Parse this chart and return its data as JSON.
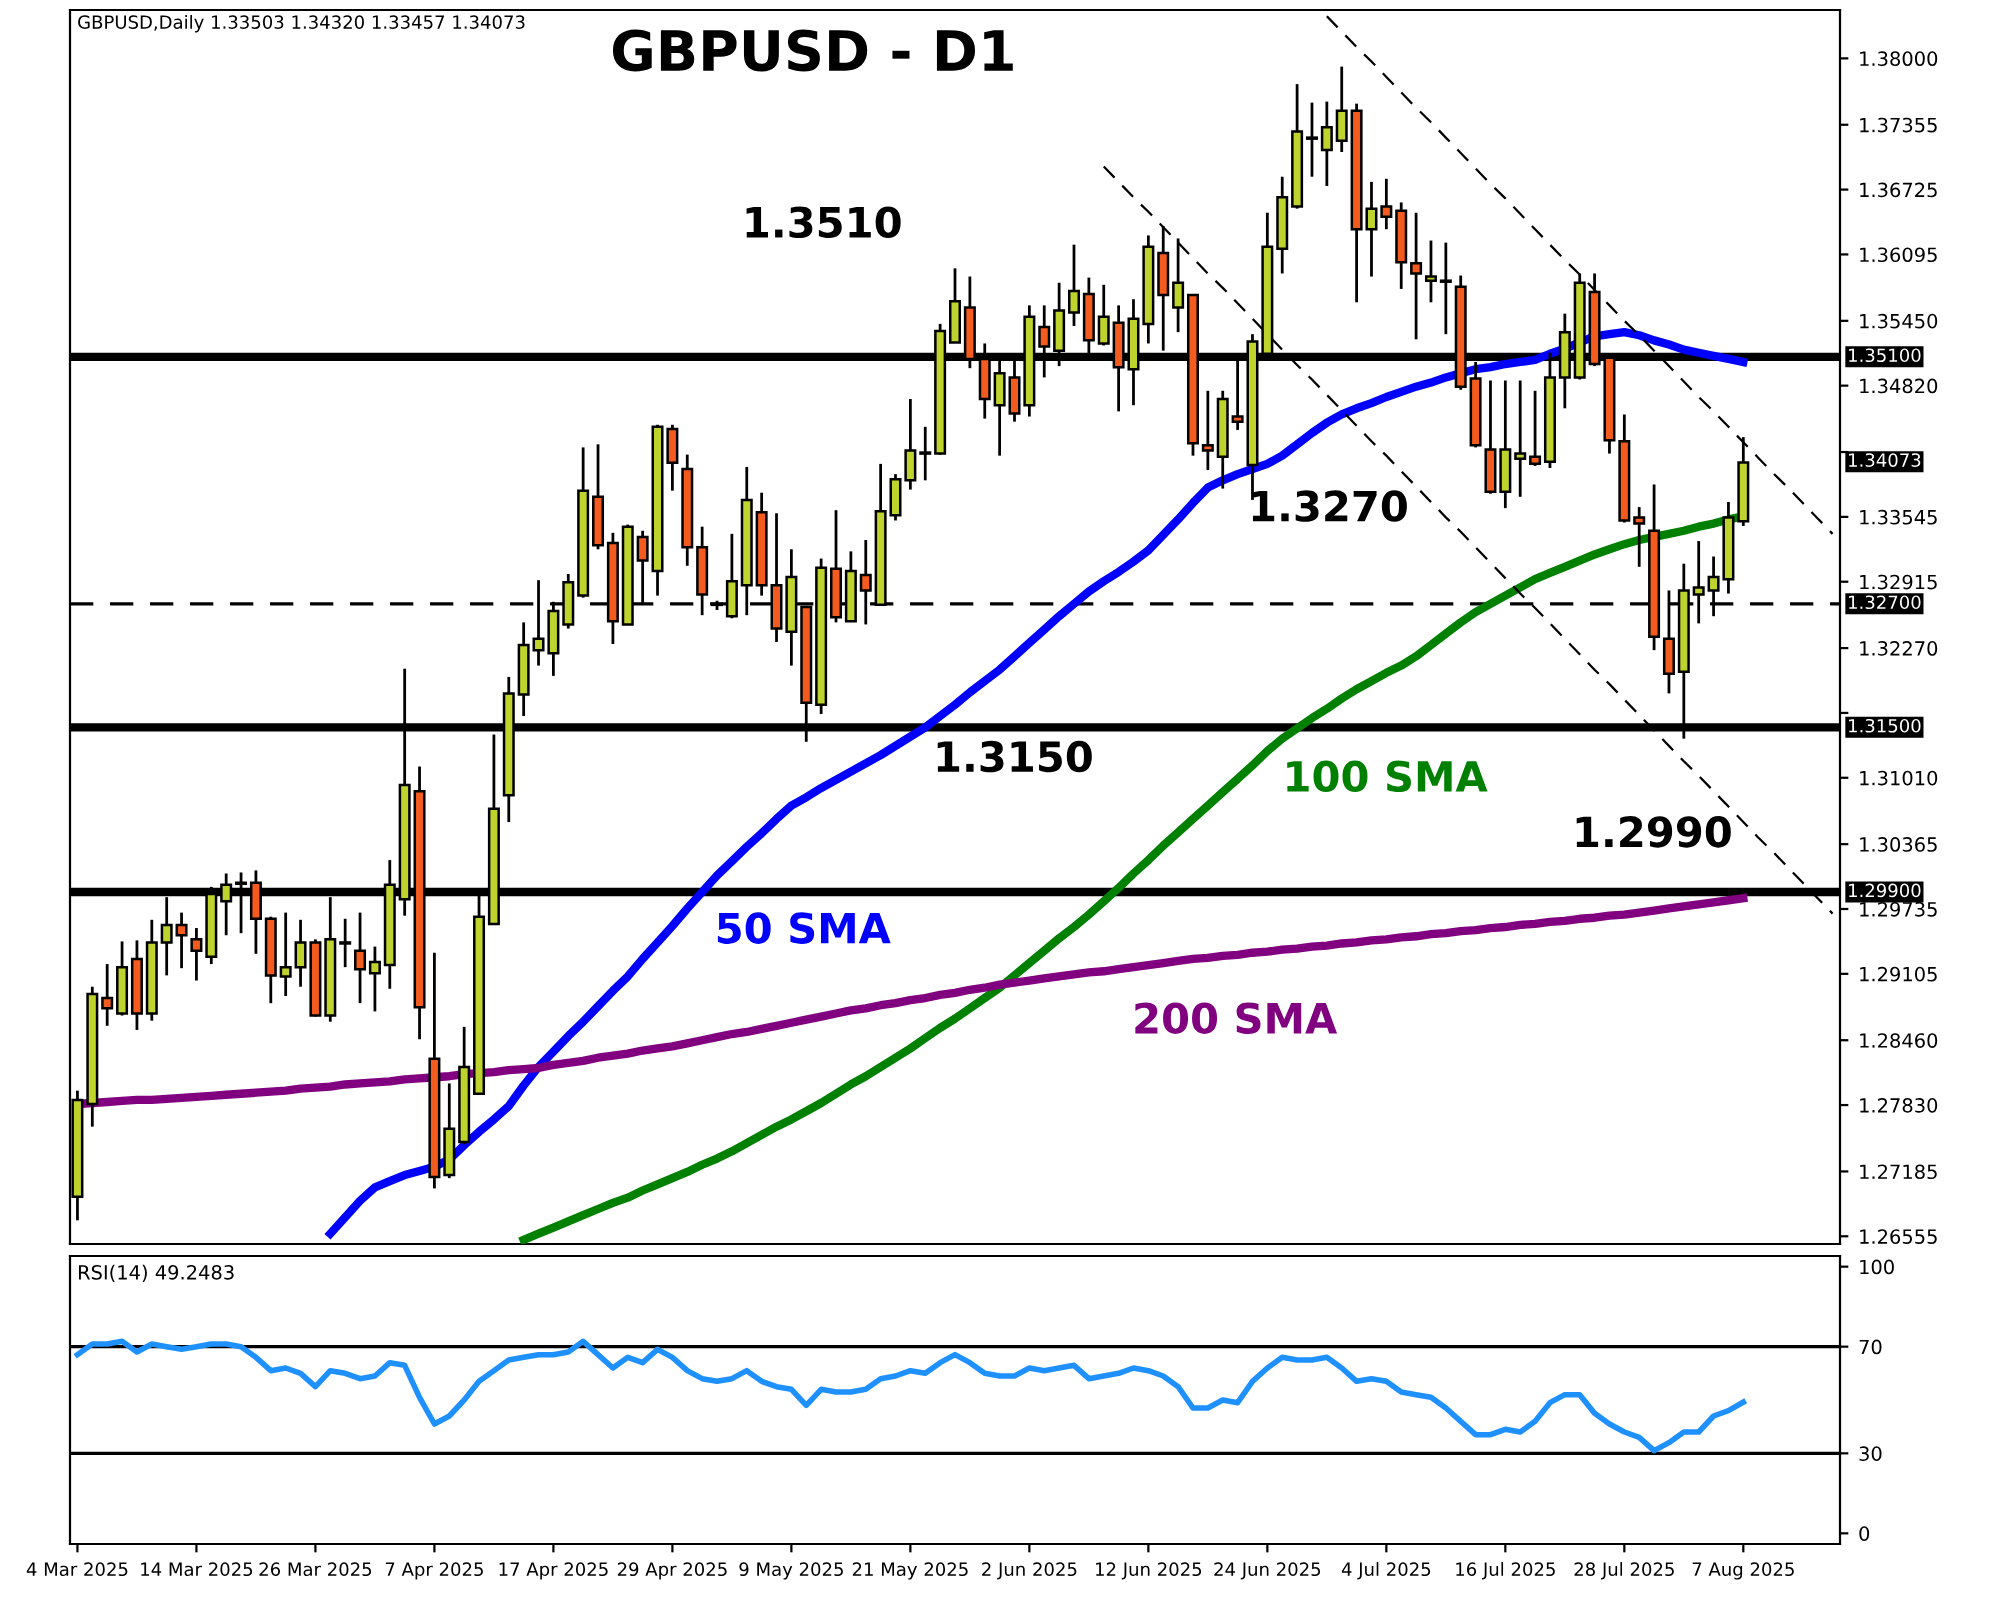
{
  "chart_data": [
    {
      "type": "candlestick",
      "title": "GBPUSD - D1",
      "subtitle": "GBPUSD,Daily 1.33503 1.34320 1.33457 1.34073",
      "categories": [
        null,
        null,
        null,
        null,
        null,
        null,
        null,
        null,
        null,
        null,
        null,
        null,
        null,
        null,
        null,
        null,
        null,
        null,
        null,
        null,
        null,
        null,
        null,
        null,
        null,
        null,
        null,
        null,
        null,
        null,
        null,
        null,
        null,
        null,
        null,
        null,
        null,
        null,
        null,
        null,
        null,
        null,
        null,
        null,
        null,
        null,
        null,
        null,
        null,
        null,
        null,
        null,
        null,
        null,
        null,
        null,
        null,
        null,
        null,
        null,
        null,
        null,
        null,
        null,
        null,
        null,
        null,
        null,
        null,
        null,
        null,
        null,
        null,
        null,
        null,
        null,
        null,
        null,
        null,
        null,
        null,
        null,
        null,
        null,
        null,
        null,
        null,
        null,
        null,
        null,
        null,
        null,
        null,
        null,
        null,
        null,
        null,
        null,
        null,
        null,
        null,
        null,
        null,
        null,
        null,
        null,
        null,
        null,
        null,
        null,
        null,
        null,
        null,
        null,
        null,
        null,
        null,
        null,
        null
      ],
      "ohlc": [
        [
          1.2694,
          1.2797,
          1.2671,
          1.2788
        ],
        [
          1.2784,
          1.2898,
          1.2762,
          1.2891
        ],
        [
          1.2887,
          1.292,
          1.286,
          1.2877
        ],
        [
          1.2872,
          1.2942,
          1.287,
          1.2917
        ],
        [
          1.2925,
          1.2943,
          1.2856,
          1.2872
        ],
        [
          1.2872,
          1.2963,
          1.2865,
          1.2941
        ],
        [
          1.2941,
          1.2985,
          1.2909,
          1.2958
        ],
        [
          1.2958,
          1.297,
          1.2916,
          1.2948
        ],
        [
          1.2944,
          1.2955,
          1.2904,
          1.2933
        ],
        [
          1.2927,
          1.2995,
          1.292,
          1.2988
        ],
        [
          1.2981,
          1.3008,
          1.2948,
          1.2997
        ],
        [
          1.2998,
          1.3009,
          1.295,
          1.2999
        ],
        [
          1.2999,
          1.3011,
          1.293,
          1.2964
        ],
        [
          1.2964,
          1.2966,
          1.2882,
          1.2909
        ],
        [
          1.2908,
          1.297,
          1.2889,
          1.2917
        ],
        [
          1.2917,
          1.2963,
          1.2898,
          1.2941
        ],
        [
          1.2941,
          1.2944,
          1.2869,
          1.287
        ],
        [
          1.287,
          1.2985,
          1.2864,
          1.2944
        ],
        [
          1.2941,
          1.2964,
          1.2917,
          1.294
        ],
        [
          1.2933,
          1.297,
          1.2882,
          1.2915
        ],
        [
          1.2911,
          1.2937,
          1.2874,
          1.2922
        ],
        [
          1.2919,
          1.3021,
          1.2896,
          1.2997
        ],
        [
          1.2983,
          1.3207,
          1.2967,
          1.3094
        ],
        [
          1.3088,
          1.3112,
          1.2847,
          1.2878
        ],
        [
          1.2828,
          1.2931,
          1.2702,
          1.2713
        ],
        [
          1.2715,
          1.2804,
          1.2712,
          1.276
        ],
        [
          1.2747,
          1.2859,
          1.2745,
          1.282
        ],
        [
          1.2794,
          1.2993,
          1.2794,
          1.2966
        ],
        [
          1.2959,
          1.3143,
          1.2959,
          1.3071
        ],
        [
          1.3084,
          1.3199,
          1.3058,
          1.3183
        ],
        [
          1.3182,
          1.3252,
          1.3161,
          1.323
        ],
        [
          1.3225,
          1.3293,
          1.321,
          1.3236
        ],
        [
          1.3222,
          1.3272,
          1.32,
          1.3263
        ],
        [
          1.325,
          1.3299,
          1.3246,
          1.3291
        ],
        [
          1.3278,
          1.3422,
          1.3276,
          1.338
        ],
        [
          1.3374,
          1.3425,
          1.3323,
          1.3327
        ],
        [
          1.3329,
          1.3339,
          1.3231,
          1.3253
        ],
        [
          1.325,
          1.3347,
          1.325,
          1.3345
        ],
        [
          1.3335,
          1.3341,
          1.327,
          1.3312
        ],
        [
          1.3302,
          1.3444,
          1.3278,
          1.3442
        ],
        [
          1.344,
          1.3444,
          1.338,
          1.3407
        ],
        [
          1.3401,
          1.3415,
          1.3307,
          1.3325
        ],
        [
          1.3325,
          1.3345,
          1.3259,
          1.3279
        ],
        [
          1.3269,
          1.3273,
          1.3264,
          1.327
        ],
        [
          1.3258,
          1.3338,
          1.3256,
          1.3292
        ],
        [
          1.3288,
          1.3403,
          1.3259,
          1.3371
        ],
        [
          1.3359,
          1.3378,
          1.3278,
          1.3288
        ],
        [
          1.3288,
          1.3358,
          1.3233,
          1.3246
        ],
        [
          1.3243,
          1.3323,
          1.321,
          1.3296
        ],
        [
          1.3267,
          1.3268,
          1.3136,
          1.3174
        ],
        [
          1.3172,
          1.3314,
          1.3163,
          1.3305
        ],
        [
          1.3304,
          1.3361,
          1.3252,
          1.3257
        ],
        [
          1.3253,
          1.3321,
          1.3253,
          1.3302
        ],
        [
          1.3298,
          1.3332,
          1.325,
          1.3283
        ],
        [
          1.3269,
          1.3406,
          1.3269,
          1.336
        ],
        [
          1.3356,
          1.3396,
          1.3351,
          1.3391
        ],
        [
          1.339,
          1.3469,
          1.3381,
          1.3419
        ],
        [
          1.3416,
          1.3442,
          1.339,
          1.3417
        ],
        [
          1.3416,
          1.3542,
          1.3415,
          1.3535
        ],
        [
          1.3524,
          1.3596,
          1.3524,
          1.3564
        ],
        [
          1.3558,
          1.3588,
          1.3499,
          1.3508
        ],
        [
          1.3508,
          1.3523,
          1.345,
          1.3469
        ],
        [
          1.3463,
          1.3509,
          1.3414,
          1.3494
        ],
        [
          1.349,
          1.3509,
          1.3447,
          1.3455
        ],
        [
          1.3463,
          1.356,
          1.3452,
          1.3549
        ],
        [
          1.3539,
          1.356,
          1.349,
          1.352
        ],
        [
          1.3516,
          1.3582,
          1.3501,
          1.3555
        ],
        [
          1.3553,
          1.3619,
          1.354,
          1.3574
        ],
        [
          1.3571,
          1.3587,
          1.3508,
          1.3526
        ],
        [
          1.3523,
          1.358,
          1.3521,
          1.3549
        ],
        [
          1.3543,
          1.356,
          1.3457,
          1.35
        ],
        [
          1.3498,
          1.3566,
          1.3463,
          1.3547
        ],
        [
          1.3542,
          1.3628,
          1.3523,
          1.3617
        ],
        [
          1.3611,
          1.3637,
          1.3516,
          1.357
        ],
        [
          1.3558,
          1.3625,
          1.3534,
          1.3582
        ],
        [
          1.357,
          1.3571,
          1.3414,
          1.3426
        ],
        [
          1.3424,
          1.3477,
          1.34,
          1.3419
        ],
        [
          1.3413,
          1.3477,
          1.3382,
          1.3469
        ],
        [
          1.3452,
          1.3509,
          1.3439,
          1.3447
        ],
        [
          1.3405,
          1.3532,
          1.3371,
          1.3525
        ],
        [
          1.3513,
          1.365,
          1.3513,
          1.3617
        ],
        [
          1.3615,
          1.3685,
          1.3591,
          1.3665
        ],
        [
          1.3656,
          1.3775,
          1.3654,
          1.3729
        ],
        [
          1.3722,
          1.3757,
          1.3685,
          1.3723
        ],
        [
          1.3711,
          1.3758,
          1.3676,
          1.3733
        ],
        [
          1.372,
          1.3792,
          1.3709,
          1.3749
        ],
        [
          1.3749,
          1.3756,
          1.3563,
          1.3634
        ],
        [
          1.3634,
          1.368,
          1.3588,
          1.3654
        ],
        [
          1.3656,
          1.3683,
          1.3634,
          1.3646
        ],
        [
          1.3652,
          1.366,
          1.3576,
          1.3602
        ],
        [
          1.3601,
          1.365,
          1.3527,
          1.3591
        ],
        [
          1.3584,
          1.3623,
          1.3563,
          1.3588
        ],
        [
          1.3584,
          1.3621,
          1.3532,
          1.3583
        ],
        [
          1.3578,
          1.3589,
          1.3478,
          1.3481
        ],
        [
          1.3489,
          1.3505,
          1.3422,
          1.3424
        ],
        [
          1.342,
          1.3487,
          1.3377,
          1.3379
        ],
        [
          1.3379,
          1.3487,
          1.3363,
          1.342
        ],
        [
          1.3411,
          1.3487,
          1.3374,
          1.3416
        ],
        [
          1.3413,
          1.3477,
          1.3404,
          1.3406
        ],
        [
          1.3408,
          1.3514,
          1.3402,
          1.349
        ],
        [
          1.349,
          1.3552,
          1.346,
          1.3534
        ],
        [
          1.349,
          1.3591,
          1.3488,
          1.3582
        ],
        [
          1.3573,
          1.3591,
          1.3501,
          1.3503
        ],
        [
          1.3509,
          1.3511,
          1.3416,
          1.3429
        ],
        [
          1.3428,
          1.3454,
          1.3349,
          1.3351
        ],
        [
          1.3354,
          1.3364,
          1.3306,
          1.3348
        ],
        [
          1.3341,
          1.3386,
          1.3225,
          1.3238
        ],
        [
          1.3236,
          1.3283,
          1.3183,
          1.3202
        ],
        [
          1.3204,
          1.3309,
          1.3139,
          1.3283
        ],
        [
          1.3279,
          1.3331,
          1.3251,
          1.3286
        ],
        [
          1.3283,
          1.3316,
          1.3258,
          1.3296
        ],
        [
          1.3294,
          1.3369,
          1.328,
          1.3354
        ],
        [
          1.33503,
          1.3432,
          1.33457,
          1.34073
        ],
        null,
        null,
        null,
        null,
        null,
        null
      ],
      "colors": [
        "#bfd32f",
        "#bfd32f",
        "#f45b1e",
        "#bfd32f",
        "#f45b1e",
        "#bfd32f",
        "#bfd32f",
        "#f45b1e",
        "#f45b1e",
        "#bfd32f",
        "#bfd32f",
        "#bfd32f",
        "#f45b1e",
        "#f45b1e",
        "#bfd32f",
        "#bfd32f",
        "#f45b1e",
        "#bfd32f",
        "#f45b1e",
        "#f45b1e",
        "#bfd32f",
        "#bfd32f",
        "#bfd32f",
        "#f45b1e",
        "#f45b1e",
        "#bfd32f",
        "#bfd32f",
        "#bfd32f",
        "#bfd32f",
        "#bfd32f",
        "#bfd32f",
        "#bfd32f",
        "#bfd32f",
        "#bfd32f",
        "#bfd32f",
        "#f45b1e",
        "#f45b1e",
        "#bfd32f",
        "#f45b1e",
        "#bfd32f",
        "#f45b1e",
        "#f45b1e",
        "#f45b1e",
        "#bfd32f",
        "#bfd32f",
        "#bfd32f",
        "#f45b1e",
        "#f45b1e",
        "#bfd32f",
        "#f45b1e",
        "#bfd32f",
        "#f45b1e",
        "#bfd32f",
        "#f45b1e",
        "#bfd32f",
        "#bfd32f",
        "#bfd32f",
        "#bfd32f",
        "#bfd32f",
        "#bfd32f",
        "#f45b1e",
        "#f45b1e",
        "#bfd32f",
        "#f45b1e",
        "#bfd32f",
        "#f45b1e",
        "#bfd32f",
        "#bfd32f",
        "#f45b1e",
        "#bfd32f",
        "#f45b1e",
        "#bfd32f",
        "#bfd32f",
        "#f45b1e",
        "#bfd32f",
        "#f45b1e",
        "#f45b1e",
        "#bfd32f",
        "#f45b1e",
        "#bfd32f",
        "#bfd32f",
        "#bfd32f",
        "#bfd32f",
        "#bfd32f",
        "#bfd32f",
        "#bfd32f",
        "#f45b1e",
        "#bfd32f",
        "#f45b1e",
        "#f45b1e",
        "#f45b1e",
        "#bfd32f",
        "#f45b1e",
        "#f45b1e",
        "#f45b1e",
        "#f45b1e",
        "#bfd32f",
        "#bfd32f",
        "#f45b1e",
        "#bfd32f",
        "#bfd32f",
        "#bfd32f",
        "#f45b1e",
        "#f45b1e",
        "#f45b1e",
        "#f45b1e",
        "#f45b1e",
        "#f45b1e",
        "#bfd32f",
        "#bfd32f",
        "#bfd32f",
        "#bfd32f",
        "#bfd32f",
        null,
        null,
        null,
        null,
        null,
        null
      ],
      "series": [
        {
          "type": "line",
          "name": "50 SMA",
          "color": "#0000ff",
          "values": [
            null,
            null,
            null,
            null,
            null,
            null,
            null,
            null,
            null,
            null,
            null,
            null,
            null,
            null,
            null,
            null,
            null,
            1.2658,
            1.2674,
            1.269,
            1.2703,
            1.2709,
            1.2715,
            1.2719,
            1.2723,
            1.273,
            1.2744,
            1.2757,
            1.2769,
            1.2782,
            1.2802,
            1.282,
            1.2835,
            1.285,
            1.2864,
            1.2879,
            1.2894,
            1.2908,
            1.2925,
            1.2941,
            1.2957,
            1.2974,
            1.299,
            1.3006,
            1.302,
            1.3034,
            1.3047,
            1.3061,
            1.3074,
            1.3082,
            1.3091,
            1.3099,
            1.3107,
            1.3115,
            1.3123,
            1.3132,
            1.3141,
            1.315,
            1.3161,
            1.3172,
            1.3184,
            1.3195,
            1.3206,
            1.3219,
            1.3232,
            1.3245,
            1.3258,
            1.327,
            1.3282,
            1.3292,
            1.3301,
            1.3311,
            1.3322,
            1.3337,
            1.3352,
            1.3368,
            1.3383,
            1.339,
            1.3396,
            1.3401,
            1.3406,
            1.3414,
            1.3425,
            1.3436,
            1.3446,
            1.3454,
            1.346,
            1.3465,
            1.3471,
            1.3476,
            1.3481,
            1.3485,
            1.349,
            1.3494,
            1.3498,
            1.35,
            1.3503,
            1.3505,
            1.3507,
            1.3513,
            1.3518,
            1.3524,
            1.353,
            1.3532,
            1.3534,
            1.3531,
            1.3526,
            1.3522,
            1.3517,
            1.3514,
            1.3511,
            1.3508,
            1.3505,
            null,
            null,
            null,
            null,
            null,
            null
          ]
        },
        {
          "type": "line",
          "name": "100 SMA",
          "color": "#008000",
          "values": [
            null,
            null,
            null,
            null,
            null,
            null,
            null,
            null,
            null,
            null,
            null,
            null,
            null,
            null,
            null,
            null,
            null,
            null,
            null,
            null,
            null,
            null,
            null,
            null,
            null,
            null,
            null,
            null,
            null,
            null,
            1.2652,
            1.2658,
            1.2664,
            1.267,
            1.2676,
            1.2682,
            1.2688,
            1.2693,
            1.27,
            1.2706,
            1.2712,
            1.2718,
            1.2725,
            1.2731,
            1.2738,
            1.2746,
            1.2754,
            1.2762,
            1.2769,
            1.2777,
            1.2785,
            1.2794,
            1.2803,
            1.2811,
            1.282,
            1.2829,
            1.2838,
            1.2848,
            1.2858,
            1.2867,
            1.2877,
            1.2887,
            1.2897,
            1.2909,
            1.2921,
            1.2933,
            1.2945,
            1.2956,
            1.2968,
            1.2981,
            1.2994,
            1.3008,
            1.3021,
            1.3035,
            1.3048,
            1.3061,
            1.3074,
            1.3087,
            1.31,
            1.3113,
            1.3127,
            1.3139,
            1.3149,
            1.3159,
            1.3168,
            1.3178,
            1.3187,
            1.3195,
            1.3203,
            1.321,
            1.3219,
            1.323,
            1.3241,
            1.3252,
            1.3262,
            1.327,
            1.3278,
            1.3286,
            1.3294,
            1.33,
            1.3306,
            1.3312,
            1.3318,
            1.3323,
            1.3328,
            1.3332,
            1.3335,
            1.3338,
            1.3341,
            1.3345,
            1.3348,
            1.3352,
            1.3355,
            null,
            null,
            null,
            null,
            null,
            null
          ]
        },
        {
          "type": "line",
          "name": "200 SMA",
          "color": "#800080",
          "values": [
            1.2784,
            1.2785,
            1.2786,
            1.2787,
            1.2788,
            1.2788,
            1.2789,
            1.279,
            1.2791,
            1.2792,
            1.2793,
            1.2794,
            1.2795,
            1.2796,
            1.2797,
            1.2799,
            1.28,
            1.2801,
            1.2803,
            1.2804,
            1.2805,
            1.2806,
            1.2808,
            1.2809,
            1.281,
            1.2811,
            1.2813,
            1.2814,
            1.2815,
            1.2817,
            1.2818,
            1.2819,
            1.2822,
            1.2824,
            1.2826,
            1.2829,
            1.2831,
            1.2833,
            1.2836,
            1.2838,
            1.284,
            1.2843,
            1.2846,
            1.2849,
            1.2852,
            1.2854,
            1.2857,
            1.286,
            1.2863,
            1.2866,
            1.2869,
            1.2872,
            1.2875,
            1.2877,
            1.288,
            1.2882,
            1.2885,
            1.2887,
            1.289,
            1.2892,
            1.2895,
            1.2897,
            1.29,
            1.2902,
            1.2904,
            1.2906,
            1.2908,
            1.291,
            1.2912,
            1.2913,
            1.2915,
            1.2917,
            1.2919,
            1.2921,
            1.2923,
            1.2925,
            1.2926,
            1.2928,
            1.2929,
            1.2931,
            1.2932,
            1.2934,
            1.2935,
            1.2937,
            1.2938,
            1.294,
            1.2941,
            1.2943,
            1.2944,
            1.2946,
            1.2947,
            1.2949,
            1.295,
            1.2952,
            1.2953,
            1.2955,
            1.2956,
            1.2958,
            1.2959,
            1.2961,
            1.2962,
            1.2964,
            1.2965,
            1.2967,
            1.2968,
            1.297,
            1.2972,
            1.2974,
            1.2976,
            1.2978,
            1.298,
            1.2982,
            1.2984,
            null,
            null,
            null,
            null,
            null,
            null
          ]
        },
        {
          "type": "line",
          "color": "#000000",
          "line_style": "dashed",
          "values": [
            null,
            null,
            null,
            null,
            null,
            null,
            null,
            null,
            null,
            null,
            null,
            null,
            null,
            null,
            null,
            null,
            null,
            null,
            null,
            null,
            null,
            null,
            null,
            null,
            null,
            null,
            null,
            null,
            null,
            null,
            null,
            null,
            null,
            null,
            null,
            null,
            null,
            null,
            null,
            null,
            null,
            null,
            null,
            null,
            null,
            null,
            null,
            null,
            null,
            null,
            null,
            null,
            null,
            null,
            null,
            null,
            null,
            null,
            null,
            null,
            null,
            null,
            null,
            null,
            null,
            null,
            null,
            null,
            null,
            null,
            null,
            null,
            null,
            null,
            null,
            null,
            null,
            null,
            null,
            null,
            null,
            null,
            null,
            null,
            1.3841,
            1.3826,
            1.3811,
            1.3797,
            1.3782,
            1.3767,
            1.3752,
            1.3738,
            1.3723,
            1.3708,
            1.3693,
            1.3678,
            1.3664,
            1.3649,
            1.3634,
            1.3619,
            1.3604,
            1.359,
            1.3575,
            1.356,
            1.3545,
            1.3531,
            1.3516,
            1.3501,
            1.3486,
            1.3471,
            1.3457,
            1.3442,
            1.3427,
            1.3412,
            1.3397,
            1.3383,
            1.3368,
            1.3353,
            1.3338
          ]
        },
        {
          "type": "line",
          "color": "#000000",
          "line_style": "dashed",
          "values": [
            null,
            null,
            null,
            null,
            null,
            null,
            null,
            null,
            null,
            null,
            null,
            null,
            null,
            null,
            null,
            null,
            null,
            null,
            null,
            null,
            null,
            null,
            null,
            null,
            null,
            null,
            null,
            null,
            null,
            null,
            null,
            null,
            null,
            null,
            null,
            null,
            null,
            null,
            null,
            null,
            null,
            null,
            null,
            null,
            null,
            null,
            null,
            null,
            null,
            null,
            null,
            null,
            null,
            null,
            null,
            null,
            null,
            null,
            null,
            null,
            null,
            null,
            null,
            null,
            null,
            null,
            null,
            null,
            null,
            1.3695,
            1.368,
            1.3665,
            1.3651,
            1.3636,
            1.3621,
            1.3606,
            1.3591,
            1.3577,
            1.3562,
            1.3547,
            1.3532,
            1.3517,
            1.3502,
            1.3488,
            1.3473,
            1.3458,
            1.3443,
            1.3428,
            1.3414,
            1.3399,
            1.3384,
            1.3369,
            1.3354,
            1.334,
            1.3325,
            1.331,
            1.3295,
            1.328,
            1.3266,
            1.3251,
            1.3236,
            1.3221,
            1.3206,
            1.3192,
            1.3177,
            1.3162,
            1.3147,
            1.3132,
            1.3117,
            1.3103,
            1.3088,
            1.3073,
            1.3058,
            1.3043,
            1.3029,
            1.3014,
            1.2999,
            1.2984,
            1.2969
          ]
        }
      ],
      "ref_lines": [
        {
          "axis": "y",
          "value": 1.351,
          "label": "1.35100",
          "color": "#000000",
          "line_style": "solid"
        },
        {
          "axis": "y",
          "value": 1.327,
          "label": "1.32700",
          "color": "#000000",
          "line_style": "dashed"
        },
        {
          "axis": "y",
          "value": 1.315,
          "label": "1.31500",
          "color": "#000000",
          "line_style": "solid"
        },
        {
          "axis": "y",
          "value": 1.299,
          "label": "1.29900",
          "color": "#000000",
          "line_style": "solid"
        }
      ],
      "annotations": [
        "1.3510",
        "1.3270",
        "1.3150",
        "1.2990",
        "1.34073"
      ],
      "ylim": [
        1.2648,
        1.3847
      ],
      "yticks": [
        {
          "value": 1.38,
          "label": "1.38000"
        },
        {
          "value": 1.37355,
          "label": "1.37355"
        },
        {
          "value": 1.36725,
          "label": "1.36725"
        },
        {
          "value": 1.36095,
          "label": "1.36095"
        },
        {
          "value": 1.3545,
          "label": "1.35450"
        },
        {
          "value": 1.3482,
          "label": "1.34820"
        },
        {
          "value": 1.34175,
          "label": null
        },
        {
          "value": 1.33545,
          "label": "1.33545"
        },
        {
          "value": 1.32915,
          "label": "1.32915"
        },
        {
          "value": 1.3227,
          "label": "1.32270"
        },
        {
          "value": 1.3164,
          "label": null
        },
        {
          "value": 1.3101,
          "label": "1.31010"
        },
        {
          "value": 1.30365,
          "label": "1.30365"
        },
        {
          "value": 1.29735,
          "label": "1.29735"
        },
        {
          "value": 1.29105,
          "label": "1.29105"
        },
        {
          "value": 1.2846,
          "label": "1.28460"
        },
        {
          "value": 1.2783,
          "label": "1.27830"
        },
        {
          "value": 1.27185,
          "label": "1.27185"
        },
        {
          "value": 1.26555,
          "label": "1.26555"
        }
      ],
      "tick_labels": "y",
      "grid": false,
      "legend": false
    },
    {
      "type": "line",
      "title": "RSI(14) 49.2483",
      "categories": [
        "4 Mar 2025",
        null,
        null,
        null,
        null,
        null,
        null,
        null,
        "14 Mar 2025",
        null,
        null,
        null,
        null,
        null,
        null,
        null,
        "26 Mar 2025",
        null,
        null,
        null,
        null,
        null,
        null,
        null,
        "7 Apr 2025",
        null,
        null,
        null,
        null,
        null,
        null,
        null,
        "17 Apr 2025",
        null,
        null,
        null,
        null,
        null,
        null,
        null,
        "29 Apr 2025",
        null,
        null,
        null,
        null,
        null,
        null,
        null,
        "9 May 2025",
        null,
        null,
        null,
        null,
        null,
        null,
        null,
        "21 May 2025",
        null,
        null,
        null,
        null,
        null,
        null,
        null,
        "2 Jun 2025",
        null,
        null,
        null,
        null,
        null,
        null,
        null,
        "12 Jun 2025",
        null,
        null,
        null,
        null,
        null,
        null,
        null,
        "24 Jun 2025",
        null,
        null,
        null,
        null,
        null,
        null,
        null,
        "4 Jul 2025",
        null,
        null,
        null,
        null,
        null,
        null,
        null,
        "16 Jul 2025",
        null,
        null,
        null,
        null,
        null,
        null,
        null,
        "28 Jul 2025",
        null,
        null,
        null,
        null,
        null,
        null,
        null,
        "7 Aug 2025",
        null,
        null,
        null,
        null,
        null,
        null
      ],
      "series": [
        {
          "color": "#1e90ff",
          "values": [
            67,
            71,
            71,
            72,
            68,
            71,
            70,
            69,
            70,
            71,
            71,
            70,
            66,
            61,
            62,
            60,
            55,
            61,
            60,
            58,
            59,
            64,
            63,
            51,
            41,
            44,
            50,
            57,
            61,
            65,
            66,
            67,
            67,
            68,
            72,
            67,
            62,
            66,
            64,
            69,
            66,
            61,
            58,
            57,
            58,
            61,
            57,
            55,
            54,
            48,
            54,
            53,
            53,
            54,
            58,
            59,
            61,
            60,
            64,
            67,
            64,
            60,
            59,
            59,
            62,
            61,
            62,
            63,
            58,
            59,
            60,
            62,
            61,
            59,
            55,
            47,
            47,
            50,
            49,
            57,
            62,
            66,
            65,
            65,
            66,
            62,
            57,
            58,
            57,
            53,
            52,
            51,
            47,
            42,
            37,
            37,
            39,
            38,
            42,
            49,
            52,
            52,
            45,
            41,
            38,
            36,
            31,
            34,
            38,
            38,
            44,
            46,
            49.2,
            null,
            null,
            null,
            null,
            null,
            null
          ]
        }
      ],
      "ref_lines": [
        {
          "axis": "y",
          "value": 70,
          "color": "#000000",
          "line_style": "solid"
        },
        {
          "axis": "y",
          "value": 30,
          "color": "#000000",
          "line_style": "solid"
        }
      ],
      "ylim": [
        -4,
        104
      ],
      "yticks": [
        0,
        30,
        70,
        100
      ],
      "grid": false,
      "legend": false
    }
  ]
}
